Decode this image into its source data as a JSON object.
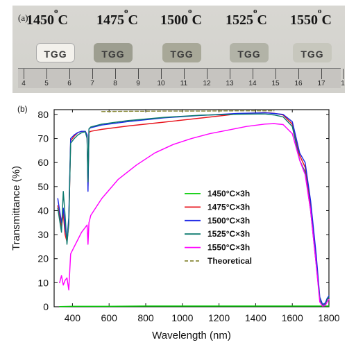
{
  "photo": {
    "label": "(a)",
    "temperatures": [
      "1450",
      "1475",
      "1500",
      "1525",
      "1550"
    ],
    "temperature_unit": "C",
    "temperature_degree_mark": "o",
    "sample_label": "TGG",
    "ruler_numbers": [
      "4",
      "5",
      "6",
      "7",
      "8",
      "9",
      "10",
      "11",
      "12",
      "13",
      "14",
      "15",
      "16",
      "17",
      "1"
    ]
  },
  "chart_data": {
    "type": "line",
    "panel_label": "(b)",
    "xlabel": "Wavelength (nm)",
    "ylabel": "Transmittance (%)",
    "xlim": [
      300,
      1800
    ],
    "ylim": [
      0,
      82
    ],
    "xticks": [
      400,
      600,
      800,
      1000,
      1200,
      1400,
      1600,
      1800
    ],
    "yticks": [
      0,
      10,
      20,
      30,
      40,
      50,
      60,
      70,
      80
    ],
    "grid": false,
    "legend_position": "center-right",
    "series": [
      {
        "name": "1450°C×3h",
        "color": "#00cc00",
        "points": [
          [
            330,
            0.1
          ],
          [
            400,
            0.2
          ],
          [
            600,
            0.2
          ],
          [
            800,
            0.3
          ],
          [
            1000,
            0.3
          ],
          [
            1200,
            0.3
          ],
          [
            1400,
            0.3
          ],
          [
            1600,
            0.3
          ],
          [
            1800,
            0.3
          ]
        ]
      },
      {
        "name": "1475°C×3h",
        "color": "#e8141d",
        "points": [
          [
            320,
            42
          ],
          [
            330,
            38
          ],
          [
            340,
            33
          ],
          [
            350,
            39
          ],
          [
            360,
            30
          ],
          [
            370,
            27
          ],
          [
            380,
            34
          ],
          [
            390,
            69
          ],
          [
            410,
            71
          ],
          [
            430,
            72.5
          ],
          [
            450,
            73
          ],
          [
            470,
            73
          ],
          [
            480,
            71.5
          ],
          [
            485,
            50
          ],
          [
            490,
            72.5
          ],
          [
            500,
            73
          ],
          [
            560,
            73.8
          ],
          [
            700,
            75.2
          ],
          [
            900,
            76.8
          ],
          [
            1100,
            78.5
          ],
          [
            1300,
            80.2
          ],
          [
            1450,
            80.8
          ],
          [
            1500,
            80.5
          ],
          [
            1550,
            79.8
          ],
          [
            1600,
            76
          ],
          [
            1640,
            63
          ],
          [
            1670,
            58
          ],
          [
            1700,
            42
          ],
          [
            1730,
            20
          ],
          [
            1750,
            3
          ],
          [
            1765,
            0.5
          ],
          [
            1780,
            1
          ],
          [
            1790,
            3
          ],
          [
            1800,
            4
          ]
        ]
      },
      {
        "name": "1500°C×3h",
        "color": "#1c27e6",
        "points": [
          [
            320,
            45
          ],
          [
            330,
            40
          ],
          [
            340,
            35
          ],
          [
            350,
            41
          ],
          [
            360,
            33
          ],
          [
            370,
            28
          ],
          [
            380,
            37
          ],
          [
            390,
            70
          ],
          [
            410,
            71.5
          ],
          [
            430,
            72.5
          ],
          [
            450,
            73
          ],
          [
            470,
            73
          ],
          [
            480,
            71.5
          ],
          [
            485,
            48
          ],
          [
            490,
            74
          ],
          [
            500,
            74.5
          ],
          [
            560,
            75.6
          ],
          [
            700,
            77
          ],
          [
            900,
            78.6
          ],
          [
            1100,
            79.6
          ],
          [
            1300,
            80.4
          ],
          [
            1450,
            80.7
          ],
          [
            1500,
            80.4
          ],
          [
            1550,
            80
          ],
          [
            1600,
            77
          ],
          [
            1640,
            64
          ],
          [
            1670,
            60
          ],
          [
            1700,
            44
          ],
          [
            1730,
            22
          ],
          [
            1750,
            4
          ],
          [
            1765,
            1
          ],
          [
            1780,
            1.5
          ],
          [
            1790,
            3.5
          ],
          [
            1800,
            4.5
          ]
        ]
      },
      {
        "name": "1525°C×3h",
        "color": "#0c7a6e",
        "points": [
          [
            320,
            41
          ],
          [
            330,
            36
          ],
          [
            340,
            31
          ],
          [
            350,
            48
          ],
          [
            360,
            38
          ],
          [
            370,
            26
          ],
          [
            380,
            35
          ],
          [
            390,
            68
          ],
          [
            410,
            70
          ],
          [
            430,
            71.5
          ],
          [
            450,
            72.4
          ],
          [
            470,
            72.8
          ],
          [
            480,
            70
          ],
          [
            485,
            52
          ],
          [
            490,
            74
          ],
          [
            500,
            74.8
          ],
          [
            560,
            76
          ],
          [
            700,
            77.4
          ],
          [
            900,
            78.8
          ],
          [
            1100,
            79.7
          ],
          [
            1300,
            80.1
          ],
          [
            1450,
            80.2
          ],
          [
            1500,
            79.8
          ],
          [
            1550,
            79
          ],
          [
            1600,
            75
          ],
          [
            1640,
            61
          ],
          [
            1670,
            56
          ],
          [
            1700,
            40
          ],
          [
            1730,
            18
          ],
          [
            1750,
            3
          ],
          [
            1765,
            0.5
          ],
          [
            1780,
            1
          ],
          [
            1790,
            3
          ],
          [
            1800,
            4
          ]
        ]
      },
      {
        "name": "1550°C×3h",
        "color": "#ff00ff",
        "points": [
          [
            330,
            10
          ],
          [
            340,
            13
          ],
          [
            350,
            9
          ],
          [
            360,
            11
          ],
          [
            370,
            12
          ],
          [
            380,
            7
          ],
          [
            390,
            22
          ],
          [
            410,
            25
          ],
          [
            430,
            28
          ],
          [
            450,
            31
          ],
          [
            470,
            33
          ],
          [
            480,
            34
          ],
          [
            485,
            26
          ],
          [
            490,
            35
          ],
          [
            500,
            38
          ],
          [
            560,
            45
          ],
          [
            650,
            53
          ],
          [
            750,
            59
          ],
          [
            850,
            64
          ],
          [
            950,
            67.5
          ],
          [
            1050,
            70
          ],
          [
            1150,
            72
          ],
          [
            1250,
            73.5
          ],
          [
            1350,
            75
          ],
          [
            1450,
            76
          ],
          [
            1500,
            76.2
          ],
          [
            1550,
            75.8
          ],
          [
            1600,
            72
          ],
          [
            1640,
            61
          ],
          [
            1670,
            55
          ],
          [
            1700,
            40
          ],
          [
            1730,
            18
          ],
          [
            1750,
            2
          ],
          [
            1765,
            0.3
          ],
          [
            1780,
            0.5
          ],
          [
            1790,
            2
          ],
          [
            1800,
            3
          ]
        ]
      },
      {
        "name": "Theoretical",
        "color": "#8a8a3a",
        "dashed": true,
        "points": [
          [
            560,
            81.2
          ],
          [
            700,
            81.3
          ],
          [
            900,
            81.4
          ],
          [
            1100,
            81.4
          ],
          [
            1300,
            81.5
          ],
          [
            1500,
            81.5
          ]
        ]
      }
    ]
  }
}
